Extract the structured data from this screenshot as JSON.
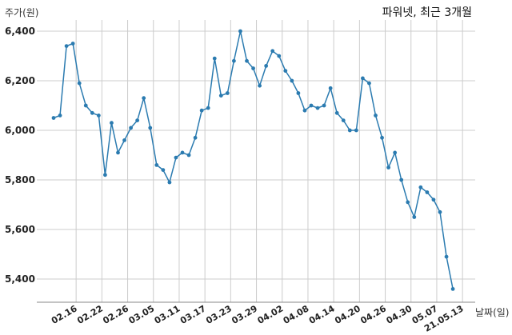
{
  "chart_data": {
    "type": "line",
    "title": "파워넷, 최근 3개월",
    "ylabel": "주가(원)",
    "xlabel": "날짜(일)",
    "ylim": [
      5300,
      6450
    ],
    "yticks": [
      5400,
      5600,
      5800,
      6000,
      6200,
      6400
    ],
    "ytick_labels": [
      "5,400",
      "5,600",
      "5,800",
      "6,000",
      "6,200",
      "6,400"
    ],
    "xtick_labels": [
      "02.16",
      "02.22",
      "02.26",
      "03.05",
      "03.11",
      "03.17",
      "03.23",
      "03.29",
      "04.02",
      "04.08",
      "04.14",
      "04.20",
      "04.26",
      "04.30",
      "05.07",
      "21.05.13"
    ],
    "xtick_positions": [
      3,
      7,
      11,
      15,
      19,
      23,
      27,
      31,
      35,
      39,
      43,
      47,
      51,
      55,
      59,
      63
    ],
    "grid": true,
    "line_color": "#2b7bb0",
    "values": [
      6050,
      6060,
      6340,
      6350,
      6190,
      6100,
      6070,
      6060,
      5820,
      6030,
      5910,
      5960,
      6010,
      6040,
      6130,
      6010,
      5860,
      5840,
      5790,
      5890,
      5910,
      5900,
      5970,
      6080,
      6090,
      6290,
      6140,
      6150,
      6280,
      6400,
      6280,
      6250,
      6180,
      6260,
      6320,
      6300,
      6240,
      6200,
      6150,
      6080,
      6100,
      6090,
      6100,
      6170,
      6070,
      6040,
      6000,
      6000,
      6210,
      6190,
      6060,
      5970,
      5850,
      5910,
      5800,
      5710,
      5650,
      5770,
      5750,
      5720,
      5670,
      5490,
      5360
    ]
  }
}
